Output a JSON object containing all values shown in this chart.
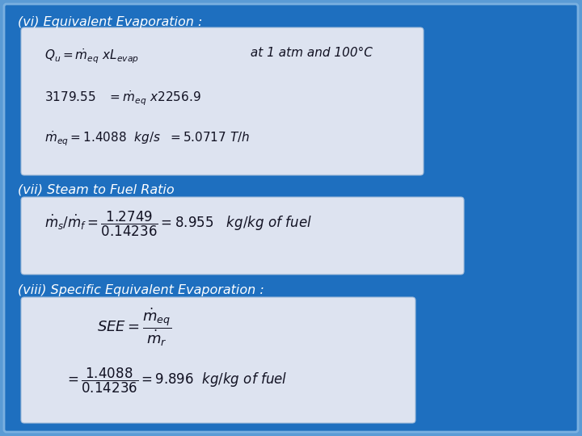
{
  "bg_outer": "#5B9BD5",
  "bg_inner": "#1E6FBF",
  "box_color": "#DDE3F0",
  "title1": "(vi) Equivalent Evaporation :",
  "title2": "(vii) Steam to Fuel Ratio",
  "title3": "(viii) Specific Equivalent Evaporation :",
  "title_color": "white",
  "text_color": "#111122",
  "title_fontsize": 11.5,
  "eq_fontsize": 11
}
